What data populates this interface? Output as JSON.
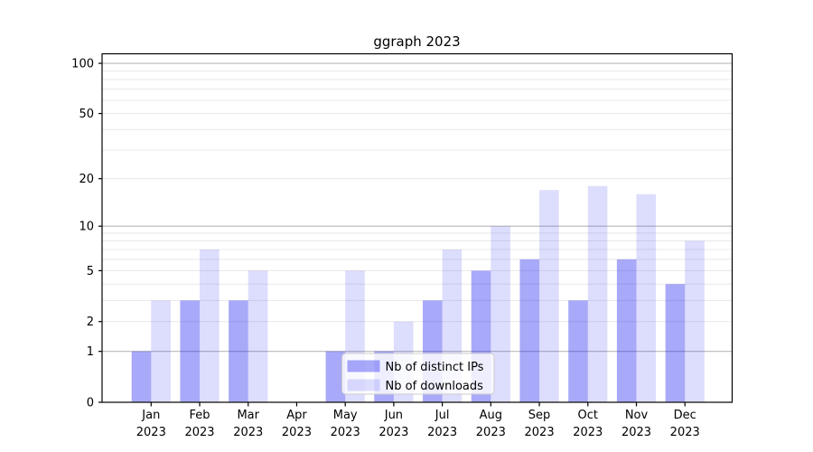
{
  "figure": {
    "title": "ggraph 2023"
  },
  "chart_data": {
    "type": "bar",
    "title": "ggraph 2023",
    "x_categories": [
      "Jan",
      "Feb",
      "Mar",
      "Apr",
      "May",
      "Jun",
      "Jul",
      "Aug",
      "Sep",
      "Oct",
      "Nov",
      "Dec"
    ],
    "x_year_label": "2023",
    "series": [
      {
        "name": "Nb of distinct IPs",
        "color": "rgba(30,30,240,0.38)",
        "values": [
          1,
          3,
          3,
          0,
          1,
          1,
          3,
          5,
          6,
          3,
          6,
          4
        ]
      },
      {
        "name": "Nb of downloads",
        "color": "rgba(30,30,240,0.15)",
        "values": [
          3,
          7,
          5,
          0,
          5,
          2,
          7,
          10,
          17,
          18,
          16,
          8
        ]
      }
    ],
    "y_scale": "log1p",
    "ylim": [
      0,
      114
    ],
    "y_ticks": [
      0,
      1,
      2,
      5,
      10,
      20,
      50,
      100
    ],
    "y_tick_labels": [
      "0",
      "1",
      "2",
      "5",
      "10",
      "20",
      "50",
      "100"
    ],
    "y_major_gridlines": [
      1,
      10,
      100
    ],
    "y_minor_gridlines": [
      2,
      3,
      4,
      5,
      6,
      7,
      8,
      9,
      20,
      30,
      40,
      50,
      60,
      70,
      80,
      90
    ],
    "grid": true,
    "legend": {
      "position": "inside-bottom-center",
      "entries": [
        "Nb of distinct IPs",
        "Nb of downloads"
      ]
    },
    "colors": {
      "major_grid": "#b9b9b9",
      "minor_grid": "#e8e8e8",
      "axis": "#000000",
      "text": "#000000",
      "legend_border": "#cccccc",
      "legend_bg": "rgba(255,255,255,0.8)"
    }
  }
}
